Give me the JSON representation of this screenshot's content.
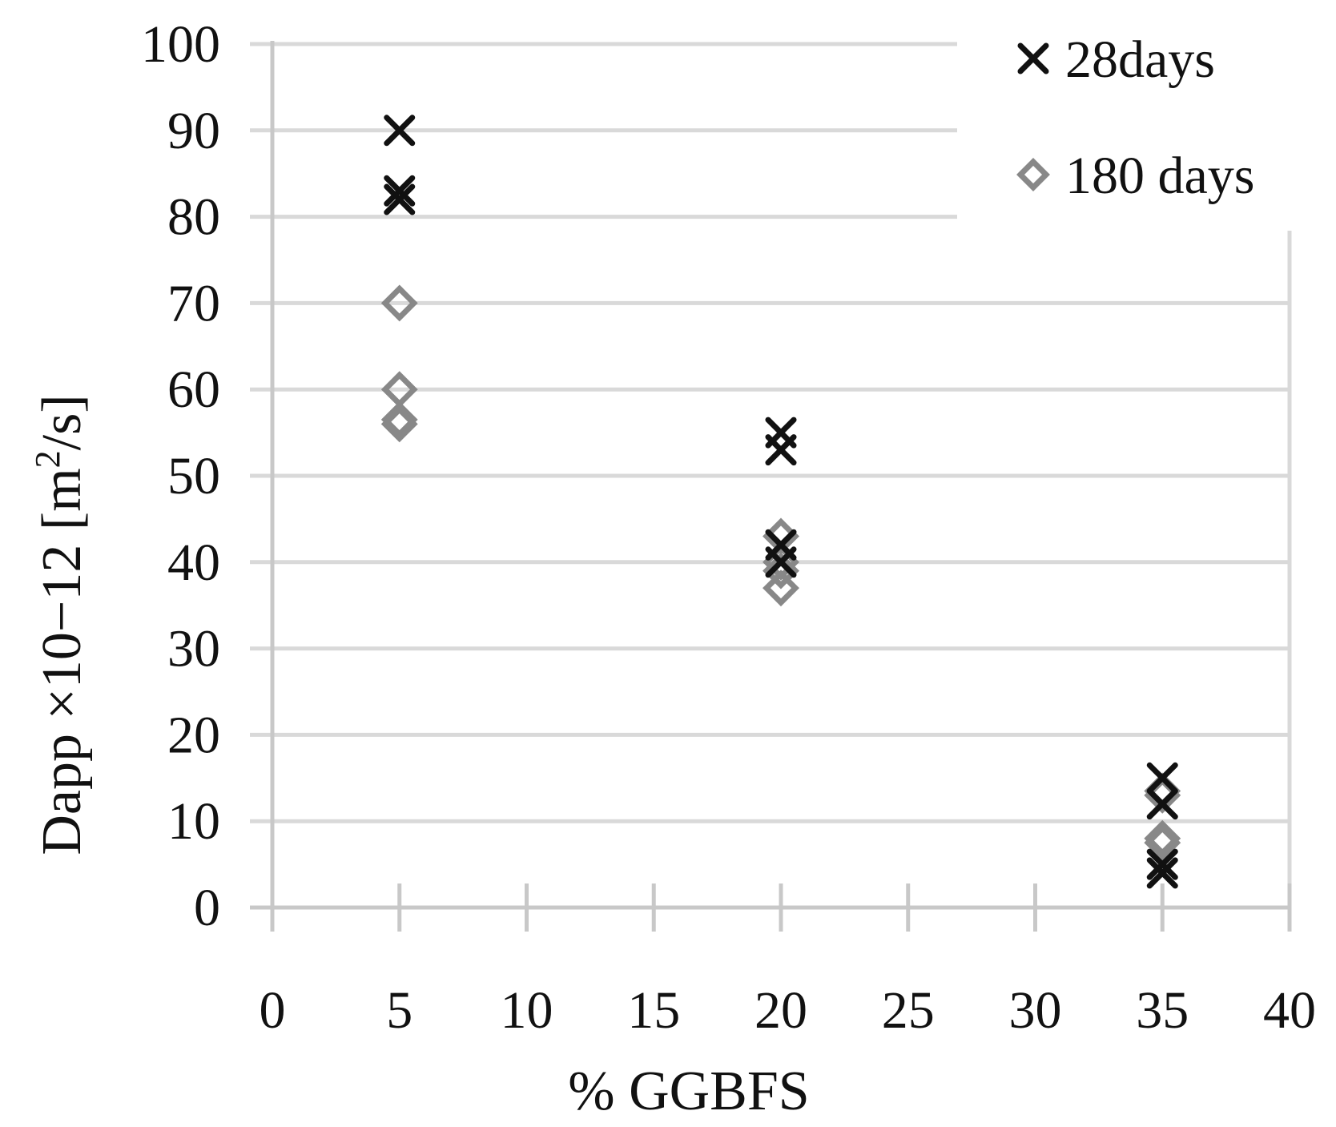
{
  "chart_data": {
    "type": "scatter",
    "xlabel": "% GGBFS",
    "ylabel": {
      "prefix": "Dapp ×10−12 [m",
      "superscript": "2",
      "suffix": "/s]"
    },
    "xlim": [
      0,
      40
    ],
    "ylim": [
      0,
      100
    ],
    "x_ticks": [
      "0",
      "5",
      "10",
      "15",
      "20",
      "25",
      "30",
      "35",
      "40"
    ],
    "y_ticks": [
      "0",
      "10",
      "20",
      "30",
      "40",
      "50",
      "60",
      "70",
      "80",
      "90",
      "100"
    ],
    "grid": "horizontal",
    "legend_position": "top-right",
    "series": [
      {
        "name": "28days",
        "marker": "x",
        "color": "#111111",
        "points": [
          {
            "x": 5,
            "y": 90
          },
          {
            "x": 5,
            "y": 83
          },
          {
            "x": 5,
            "y": 82
          },
          {
            "x": 20,
            "y": 55
          },
          {
            "x": 20,
            "y": 53
          },
          {
            "x": 20,
            "y": 42
          },
          {
            "x": 20,
            "y": 40
          },
          {
            "x": 35,
            "y": 15
          },
          {
            "x": 35,
            "y": 12
          },
          {
            "x": 35,
            "y": 5
          },
          {
            "x": 35,
            "y": 4
          }
        ]
      },
      {
        "name": "180 days",
        "marker": "diamond",
        "color": "#888888",
        "points": [
          {
            "x": 5,
            "y": 70
          },
          {
            "x": 5,
            "y": 60
          },
          {
            "x": 5,
            "y": 56.5
          },
          {
            "x": 5,
            "y": 56
          },
          {
            "x": 20,
            "y": 43
          },
          {
            "x": 20,
            "y": 40
          },
          {
            "x": 20,
            "y": 39
          },
          {
            "x": 20,
            "y": 37
          },
          {
            "x": 35,
            "y": 13.5
          },
          {
            "x": 35,
            "y": 13
          },
          {
            "x": 35,
            "y": 8
          },
          {
            "x": 35,
            "y": 7.5
          }
        ]
      }
    ]
  },
  "colors": {
    "grid": "#d9d9d9",
    "axis": "#c8c8c8",
    "tick_text": "#111111"
  }
}
